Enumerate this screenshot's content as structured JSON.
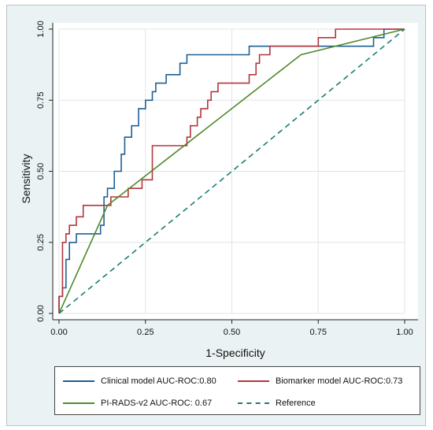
{
  "chart_data": {
    "type": "line",
    "xlabel": "1-Specificity",
    "ylabel": "Sensitivity",
    "xlim": [
      0,
      1
    ],
    "ylim": [
      0,
      1
    ],
    "xticks": [
      "0.00",
      "0.25",
      "0.50",
      "0.75",
      "1.00"
    ],
    "yticks": [
      "0.00",
      "0.25",
      "0.50",
      "0.75",
      "1.00"
    ],
    "grid": true,
    "legend_position": "bottom",
    "series": [
      {
        "name": "Clinical model AUC-ROC:0.80",
        "color": "#1f5f95",
        "style": "solid",
        "x": [
          0,
          0,
          0.01,
          0.01,
          0.02,
          0.02,
          0.03,
          0.03,
          0.05,
          0.05,
          0.12,
          0.12,
          0.13,
          0.13,
          0.14,
          0.14,
          0.16,
          0.16,
          0.18,
          0.18,
          0.19,
          0.19,
          0.21,
          0.21,
          0.23,
          0.23,
          0.25,
          0.25,
          0.27,
          0.27,
          0.28,
          0.28,
          0.31,
          0.31,
          0.35,
          0.35,
          0.37,
          0.37,
          0.38,
          0.38,
          0.48,
          0.48,
          0.55,
          0.55,
          0.75,
          0.75,
          0.91,
          0.91,
          0.94,
          0.94,
          1.0
        ],
        "y": [
          0,
          0.06,
          0.06,
          0.09,
          0.09,
          0.19,
          0.19,
          0.25,
          0.25,
          0.28,
          0.28,
          0.31,
          0.31,
          0.41,
          0.41,
          0.44,
          0.44,
          0.5,
          0.5,
          0.56,
          0.56,
          0.62,
          0.62,
          0.66,
          0.66,
          0.72,
          0.72,
          0.75,
          0.75,
          0.78,
          0.78,
          0.81,
          0.81,
          0.84,
          0.84,
          0.88,
          0.88,
          0.91,
          0.91,
          0.91,
          0.91,
          0.91,
          0.91,
          0.94,
          0.94,
          0.94,
          0.94,
          0.97,
          0.97,
          1.0,
          1.0
        ]
      },
      {
        "name": "Biomarker model AUC-ROC:0.73",
        "color": "#b5363c",
        "style": "solid",
        "x": [
          0,
          0,
          0.01,
          0.01,
          0.02,
          0.02,
          0.03,
          0.03,
          0.05,
          0.05,
          0.07,
          0.07,
          0.13,
          0.13,
          0.15,
          0.15,
          0.18,
          0.18,
          0.2,
          0.2,
          0.22,
          0.22,
          0.24,
          0.24,
          0.27,
          0.27,
          0.37,
          0.37,
          0.38,
          0.38,
          0.4,
          0.4,
          0.41,
          0.41,
          0.43,
          0.43,
          0.44,
          0.44,
          0.46,
          0.46,
          0.55,
          0.55,
          0.56,
          0.56,
          0.57,
          0.57,
          0.58,
          0.58,
          0.6,
          0.6,
          0.61,
          0.61,
          0.75,
          0.75,
          0.8,
          0.8,
          1.0
        ],
        "y": [
          0,
          0.06,
          0.06,
          0.25,
          0.25,
          0.28,
          0.28,
          0.31,
          0.31,
          0.34,
          0.34,
          0.38,
          0.38,
          0.38,
          0.38,
          0.41,
          0.41,
          0.41,
          0.41,
          0.44,
          0.44,
          0.44,
          0.44,
          0.47,
          0.47,
          0.59,
          0.59,
          0.62,
          0.62,
          0.66,
          0.66,
          0.69,
          0.69,
          0.72,
          0.72,
          0.75,
          0.75,
          0.78,
          0.78,
          0.81,
          0.81,
          0.84,
          0.84,
          0.84,
          0.84,
          0.88,
          0.88,
          0.91,
          0.91,
          0.91,
          0.91,
          0.94,
          0.94,
          0.97,
          0.97,
          1.0,
          1.0
        ]
      },
      {
        "name": "PI-RADS-v2 AUC-ROC: 0.67",
        "color": "#4f8a2c",
        "style": "solid",
        "x": [
          0,
          0.14,
          0.7,
          1.0
        ],
        "y": [
          0,
          0.38,
          0.91,
          1.0
        ]
      },
      {
        "name": "Reference",
        "color": "#1a7d72",
        "style": "dashed",
        "x": [
          0,
          1
        ],
        "y": [
          0,
          1
        ]
      }
    ]
  }
}
